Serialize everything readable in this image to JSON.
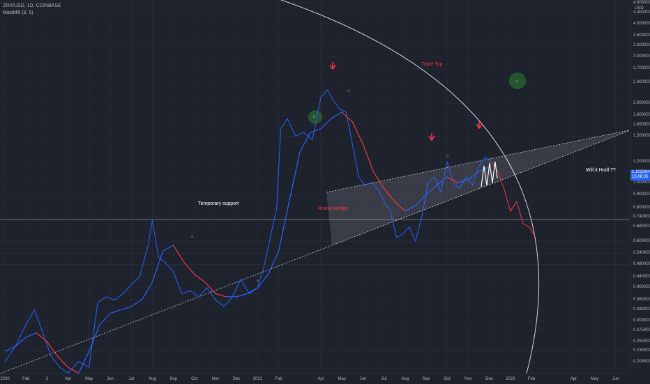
{
  "header": {
    "symbol_line": "ZRX/USD, 1D, COINBASE",
    "indicator_line": "MaxiMill (3, 5)"
  },
  "price_tag": {
    "value": "1.102264",
    "countdown": "15:08:35"
  },
  "annotations": {
    "temporary_support": "Temporary support",
    "rising_wedge": "Rising Wedge",
    "triple_top": "Triple Top",
    "will_it_hodl": "Will it Hodl ??",
    "wave_a_1": "a",
    "wave_b_1": "b",
    "wave_a_2": "a",
    "wave_b_2": "b",
    "circle_c_1": "c",
    "circle_c_2": "c"
  },
  "colors": {
    "price": "#2962ff",
    "ma_up": "#2962ff",
    "ma_down": "#f23645",
    "background": "#1e222d",
    "arrow": "#f23645"
  },
  "chart_data": {
    "type": "line",
    "title": "ZRX/USD, 1D, COINBASE",
    "y_scale": "log",
    "ylim": [
      0.2,
      4.8
    ],
    "y_ticks": [
      "4.800000",
      "4.400000",
      "4.000000",
      "3.600000",
      "3.300000",
      "3.000000",
      "2.700000",
      "2.400000",
      "2.000000",
      "1.800000",
      "1.650000",
      "1.500000",
      "1.200000",
      "1.000000",
      "0.900000",
      "0.800000",
      "0.740000",
      "0.680000",
      "0.600000",
      "0.540000",
      "0.490000",
      "0.440000",
      "0.400000",
      "0.360000",
      "0.330000",
      "0.300000",
      "0.275000",
      "0.250000",
      "0.230000",
      "0.209000"
    ],
    "y_tick_values": [
      4.8,
      4.4,
      4.0,
      3.6,
      3.3,
      3.0,
      2.7,
      2.4,
      2.0,
      1.8,
      1.65,
      1.5,
      1.2,
      1.0,
      0.9,
      0.8,
      0.74,
      0.68,
      0.6,
      0.54,
      0.49,
      0.44,
      0.4,
      0.36,
      0.33,
      0.3,
      0.275,
      0.25,
      0.23,
      0.209
    ],
    "y_unit_label": "USD",
    "x_ticks": [
      "2020",
      "Feb",
      "2",
      "Apr",
      "May",
      "Jun",
      "Jul",
      "Aug",
      "Sep",
      "Oct",
      "Nov",
      "Dec",
      "2021",
      "Feb",
      "Apr",
      "May",
      "Jun",
      "Jul",
      "Aug",
      "Sep",
      "Oct",
      "Nov",
      "Dec",
      "2022",
      "Feb",
      "Apr",
      "May",
      "Jun"
    ],
    "x_tick_values": [
      0,
      1,
      2,
      3,
      4,
      5,
      6,
      7,
      8,
      9,
      10,
      11,
      12,
      13,
      15,
      16,
      17,
      18,
      19,
      20,
      21,
      22,
      23,
      24,
      25,
      27,
      28,
      29
    ],
    "x_unit": "months since Jan 2020",
    "series": [
      {
        "name": "ZRX/USD price",
        "x": [
          0,
          0.5,
          1,
          1.4,
          1.8,
          2.2,
          2.6,
          3,
          3.5,
          4,
          4.4,
          4.8,
          5.2,
          5.6,
          6,
          6.4,
          6.8,
          7,
          7.3,
          7.6,
          8,
          8.4,
          8.8,
          9.2,
          9.6,
          10,
          10.4,
          10.8,
          11.2,
          11.6,
          12,
          12.3,
          12.6,
          12.9,
          13.1,
          13.4,
          13.8,
          14.2,
          14.6,
          15,
          15.3,
          15.6,
          15.9,
          16.2,
          16.5,
          16.8,
          17.1,
          17.4,
          17.7,
          18,
          18.3,
          18.6,
          18.9,
          19.2,
          19.5,
          19.8,
          20.1,
          20.4,
          20.7,
          21,
          21.3,
          21.6,
          21.9,
          22.2,
          22.5,
          22.8,
          23.1
        ],
        "y": [
          0.21,
          0.24,
          0.29,
          0.33,
          0.27,
          0.22,
          0.2,
          0.19,
          0.21,
          0.2,
          0.35,
          0.37,
          0.36,
          0.38,
          0.41,
          0.44,
          0.58,
          0.72,
          0.52,
          0.5,
          0.46,
          0.38,
          0.39,
          0.37,
          0.4,
          0.36,
          0.34,
          0.37,
          0.43,
          0.38,
          0.4,
          0.48,
          0.62,
          0.8,
          1.6,
          1.75,
          1.5,
          1.55,
          1.45,
          2.1,
          2.25,
          2.05,
          1.9,
          1.85,
          1.4,
          1.05,
          0.98,
          1.0,
          0.95,
          0.85,
          0.78,
          0.62,
          0.64,
          0.68,
          0.6,
          0.75,
          1.0,
          1.05,
          0.92,
          1.2,
          1.0,
          0.95,
          1.05,
          0.98,
          1.15,
          1.25,
          1.2
        ]
      },
      {
        "name": "ZRX/USD price (projected)",
        "x": [
          23.1,
          23.4,
          23.7,
          24,
          24.3,
          24.6,
          24.9,
          25.2
        ],
        "y": [
          1.2,
          1.1,
          0.95,
          0.78,
          0.85,
          0.7,
          0.68,
          0.62
        ]
      },
      {
        "name": "MaxiMill",
        "x": [
          0,
          0.5,
          1,
          1.5,
          2,
          2.5,
          3,
          3.5,
          4,
          4.5,
          5,
          5.5,
          6,
          6.5,
          7,
          7.5,
          8,
          8.5,
          9,
          9.5,
          10,
          10.5,
          11,
          11.5,
          12,
          12.5,
          13,
          13.5,
          14,
          14.5,
          15,
          15.5,
          16,
          16.5,
          17,
          17.5,
          18,
          18.5,
          19,
          19.5,
          20,
          20.5,
          21,
          21.5,
          22,
          22.5,
          23
        ],
        "y": [
          0.23,
          0.24,
          0.26,
          0.27,
          0.25,
          0.22,
          0.2,
          0.19,
          0.23,
          0.29,
          0.32,
          0.33,
          0.34,
          0.36,
          0.42,
          0.55,
          0.58,
          0.5,
          0.45,
          0.42,
          0.38,
          0.37,
          0.37,
          0.38,
          0.4,
          0.45,
          0.55,
          0.85,
          1.3,
          1.55,
          1.6,
          1.75,
          1.85,
          1.7,
          1.4,
          1.1,
          0.95,
          0.85,
          0.78,
          0.82,
          0.9,
          0.98,
          1.05,
          1.0,
          1.03,
          1.1,
          1.15
        ]
      }
    ]
  }
}
